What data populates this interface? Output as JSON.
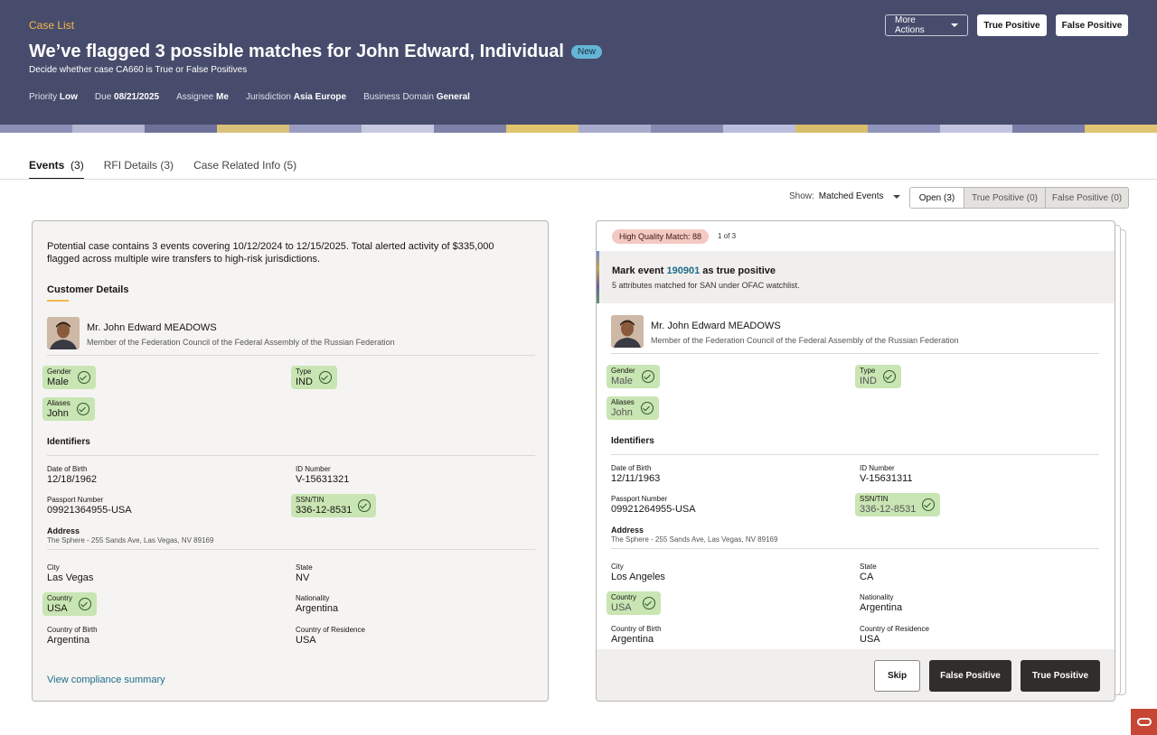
{
  "header": {
    "breadcrumb": "Case List",
    "title": "We’ve flagged 3 possible matches for John Edward, Individual",
    "badge": "New",
    "subtitle": "Decide whether case CA660 is True or False Positives",
    "meta": [
      {
        "label": "Priority",
        "value": "Low"
      },
      {
        "label": "Due",
        "value": "08/21/2025"
      },
      {
        "label": "Assignee",
        "value": "Me"
      },
      {
        "label": "Jurisdiction",
        "value": "Asia Europe"
      },
      {
        "label": "Business Domain",
        "value": "General"
      }
    ],
    "actions": {
      "more": "More Actions",
      "true_positive": "True Positive",
      "false_positive": "False Positive"
    },
    "colors": {
      "background": "#474c6c",
      "accent": "#f5b74a",
      "badge": "#65b6d6"
    }
  },
  "tabs": [
    {
      "label": "Events",
      "count": "(3)",
      "active": true
    },
    {
      "label": "RFI Details",
      "count": "(3)"
    },
    {
      "label": "Case Related Info",
      "count": "(5)"
    }
  ],
  "filter": {
    "show_label": "Show:",
    "show_value": "Matched Events",
    "segments": [
      "Open (3)",
      "True Positive (0)",
      "False Positive (0)"
    ]
  },
  "left": {
    "summary": "Potential case contains 3 events covering 10/12/2024 to 12/15/2025. Total alerted activity of $335,000 flagged across multiple wire transfers to high-risk jurisdictions.",
    "section_title": "Customer Details",
    "name": "Mr. John Edward MEADOWS",
    "description": "Member of the Federation Council of the Federal Assembly of the Russian Federation",
    "gender": {
      "label": "Gender",
      "value": "Male"
    },
    "type": {
      "label": "Type",
      "value": "IND"
    },
    "aliases": {
      "label": "Aliases",
      "value": "John"
    },
    "identifiers_title": "Identifiers",
    "dob": {
      "label": "Date of Birth",
      "value": "12/18/1962"
    },
    "id_number": {
      "label": "ID Number",
      "value": "V-15631321"
    },
    "passport": {
      "label": "Passport Number",
      "value": "09921364955-USA"
    },
    "ssn": {
      "label": "SSN/TIN",
      "value": "336-12-8531"
    },
    "address": {
      "label": "Address",
      "value": "The Sphere - 255 Sands Ave, Las Vegas, NV 89169"
    },
    "city": {
      "label": "City",
      "value": "Las Vegas"
    },
    "state": {
      "label": "State",
      "value": "NV"
    },
    "country": {
      "label": "Country",
      "value": "USA"
    },
    "nationality": {
      "label": "Nationality",
      "value": "Argentina"
    },
    "country_birth": {
      "label": "Country of Birth",
      "value": "Argentina"
    },
    "country_residence": {
      "label": "Country of Residence",
      "value": "USA"
    },
    "link": "View compliance summary"
  },
  "right": {
    "quality": "High Quality Match: 88",
    "position": "1 of 3",
    "mark_prefix": "Mark event ",
    "event_id": "190901",
    "mark_suffix": " as true positive",
    "mark_sub": "5 attributes matched for SAN under OFAC watchlist.",
    "name": "Mr. John Edward MEADOWS",
    "description": "Member of the Federation Council of the Federal Assembly of the Russian Federation",
    "gender": {
      "label": "Gender",
      "value": "Male"
    },
    "type": {
      "label": "Type",
      "value": "IND"
    },
    "aliases": {
      "label": "Aliases",
      "value": "John"
    },
    "identifiers_title": "Identifiers",
    "dob": {
      "label": "Date of Birth",
      "value": "12/11/1963"
    },
    "id_number": {
      "label": "ID Number",
      "value": "V-15631311"
    },
    "passport": {
      "label": "Passport Number",
      "value": "09921264955-USA"
    },
    "ssn": {
      "label": "SSN/TIN",
      "value": "336-12-8531"
    },
    "address": {
      "label": "Address",
      "value": "The Sphere - 255 Sands Ave, Las Vegas, NV 89169"
    },
    "city": {
      "label": "City",
      "value": "Los Angeles"
    },
    "state": {
      "label": "State",
      "value": "CA"
    },
    "country": {
      "label": "Country",
      "value": "USA"
    },
    "nationality": {
      "label": "Nationality",
      "value": "Argentina"
    },
    "country_birth": {
      "label": "Country of Birth",
      "value": "Argentina"
    },
    "country_residence": {
      "label": "Country of Residence",
      "value": "USA"
    },
    "buttons": {
      "skip": "Skip",
      "false_positive": "False Positive",
      "true_positive": "True Positive"
    }
  },
  "icons": [
    "check-circle-icon",
    "caret-down-icon",
    "oracle-logo-icon"
  ]
}
